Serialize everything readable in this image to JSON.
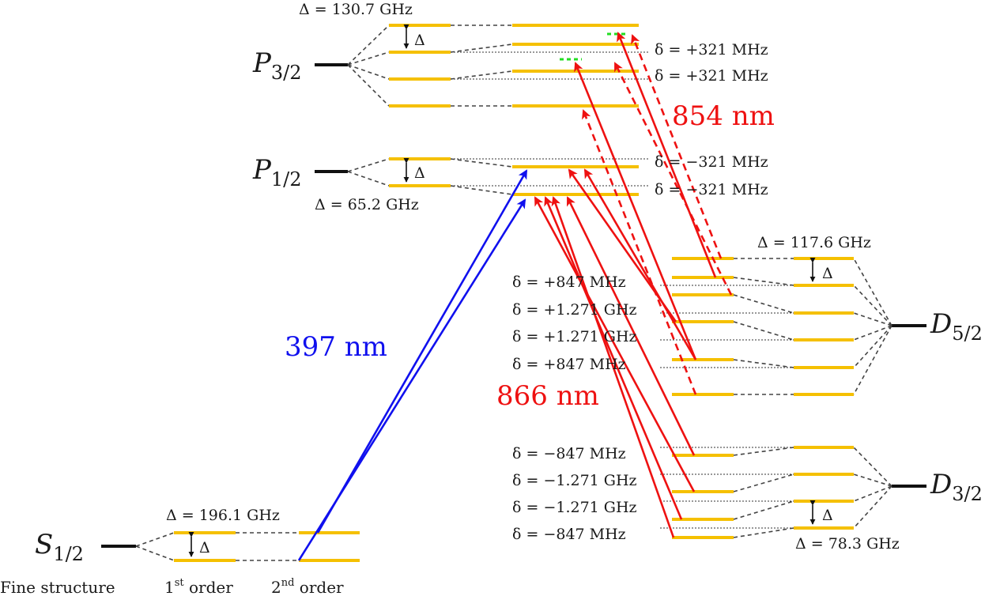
{
  "states": {
    "S": {
      "symbol": "S",
      "sub": "1/2"
    },
    "P12": {
      "symbol": "P",
      "sub": "1/2"
    },
    "P32": {
      "symbol": "P",
      "sub": "3/2"
    },
    "D52": {
      "symbol": "D",
      "sub": "5/2"
    },
    "D32": {
      "symbol": "D",
      "sub": "3/2"
    }
  },
  "splittings": {
    "S": "Δ = 196.1 GHz",
    "P12": "Δ = 65.2 GHz",
    "P32": "Δ = 130.7 GHz",
    "D52": "Δ = 117.6 GHz",
    "D32": "Δ = 78.3 GHz",
    "delta_symbol": "Δ"
  },
  "detunings": {
    "p32": [
      "δ = +321 MHz",
      "δ = +321 MHz"
    ],
    "p12": [
      "δ = −321 MHz",
      "δ = −321 MHz"
    ],
    "d52": [
      "δ = +847 MHz",
      "δ = +1.271 GHz",
      "δ = +1.271 GHz",
      "δ = +847 MHz"
    ],
    "d32": [
      "δ = −847 MHz",
      "δ = −1.271 GHz",
      "δ = −1.271 GHz",
      "δ = −847 MHz"
    ]
  },
  "wavelengths": {
    "w397": "397 nm",
    "w854": "854 nm",
    "w866": "866 nm"
  },
  "axis": {
    "fine": "Fine structure",
    "first_num": "1",
    "first_sup": "st",
    "first_word": " order",
    "second_num": "2",
    "second_sup": "nd",
    "second_word": " order"
  },
  "colors": {
    "levels": "#f5c000",
    "laser_397": "#1010ee",
    "laser_854_866": "#ee1111",
    "marker": "#22dd22"
  }
}
